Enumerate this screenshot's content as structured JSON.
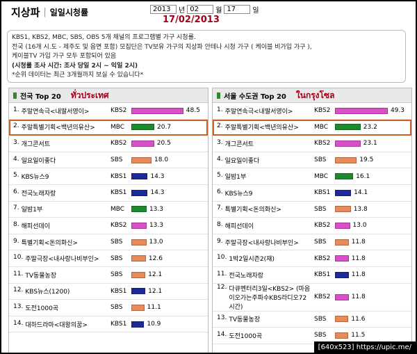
{
  "header": {
    "title": "지상파",
    "subtitle": "일일시청률",
    "selects": [
      {
        "value": "2013",
        "unit": "년"
      },
      {
        "value": "02",
        "unit": "월"
      },
      {
        "value": "17",
        "unit": "일"
      }
    ],
    "overlay_date": "17/02/2013"
  },
  "info": [
    "KBS1, KBS2, MBC, SBS, OBS 5개 채널의 프로그램별 가구 시청률.",
    "전국 (16개 시.도 - 제주도 및 읍면 포함) 모집단은 TV보유 가구의 지상파 안테나 시청 가구 ( 케이블 비가입 가구 ),",
    "케이블TV 가입 가구 모두 포함되어 있음",
    "(시청률 조사 시간: 조사 당일 2시 ~ 익일 2시)",
    "*순위 데이터는 최근 3개월까지 보실 수 있습니다*"
  ],
  "channel_colors": {
    "KBS2": "#d94fc8",
    "MBC": "#1d8a2c",
    "SBS": "#e98a5a",
    "KBS1": "#1c2a98"
  },
  "panels": [
    {
      "title": "전국 Top 20",
      "overlay": "ทั่วประเทศ",
      "rows": [
        {
          "rank": "1.",
          "name": "주말연속극<내딸서영이>",
          "channel": "KBS2",
          "value": 48.5
        },
        {
          "rank": "2.",
          "name": "주말특별기획<백년의유산>",
          "channel": "MBC",
          "value": 20.7
        },
        {
          "rank": "3.",
          "name": "개그콘서트",
          "channel": "KBS2",
          "value": 20.5
        },
        {
          "rank": "4.",
          "name": "일요일이좋다",
          "channel": "SBS",
          "value": 18,
          "value_label": "18.0"
        },
        {
          "rank": "5.",
          "name": "KBS뉴스9",
          "channel": "KBS1",
          "value": 14.3
        },
        {
          "rank": "6.",
          "name": "전국노래자랑",
          "channel": "KBS1",
          "value": 14.3
        },
        {
          "rank": "7.",
          "name": "일밤1부",
          "channel": "MBC",
          "value": 13.3
        },
        {
          "rank": "8.",
          "name": "해피선데이",
          "channel": "KBS2",
          "value": 13.3
        },
        {
          "rank": "9.",
          "name": "특별기획<돈의화신>",
          "channel": "SBS",
          "value": 13,
          "value_label": "13.0"
        },
        {
          "rank": "10.",
          "name": "주말극장<내사랑나비부인>",
          "channel": "SBS",
          "value": 12.6
        },
        {
          "rank": "11.",
          "name": "TV동물농장",
          "channel": "SBS",
          "value": 12.1
        },
        {
          "rank": "12.",
          "name": "KBS뉴스(1200)",
          "channel": "KBS1",
          "value": 12.1
        },
        {
          "rank": "13.",
          "name": "도전1000곡",
          "channel": "SBS",
          "value": 11.1
        },
        {
          "rank": "14.",
          "name": "대하드라마<대왕의꿈>",
          "channel": "KBS1",
          "value": 10.9
        }
      ]
    },
    {
      "title": "서울 수도권 Top 20",
      "overlay": "ในกรุงโซล",
      "rows": [
        {
          "rank": "1.",
          "name": "주말연속극<내딸서영이>",
          "channel": "KBS2",
          "value": 49.3
        },
        {
          "rank": "2.",
          "name": "주말특별기획<백년의유산>",
          "channel": "MBC",
          "value": 23.2
        },
        {
          "rank": "3.",
          "name": "개그콘서트",
          "channel": "KBS2",
          "value": 23.1
        },
        {
          "rank": "4.",
          "name": "일요일이좋다",
          "channel": "SBS",
          "value": 19.5
        },
        {
          "rank": "5.",
          "name": "일밤1부",
          "channel": "MBC",
          "value": 16.1
        },
        {
          "rank": "6.",
          "name": "KBS뉴스9",
          "channel": "KBS1",
          "value": 14.1
        },
        {
          "rank": "7.",
          "name": "특별기획<돈의화신>",
          "channel": "SBS",
          "value": 13.8
        },
        {
          "rank": "8.",
          "name": "해피선데이",
          "channel": "KBS2",
          "value": 13,
          "value_label": "13.0"
        },
        {
          "rank": "9.",
          "name": "주말극장<내사랑나비부인>",
          "channel": "SBS",
          "value": 11.8
        },
        {
          "rank": "10.",
          "name": "1박2일시즌2(재)",
          "channel": "KBS2",
          "value": 11.8
        },
        {
          "rank": "11.",
          "name": "전국노래자랑",
          "channel": "KBS1",
          "value": 11.8
        },
        {
          "rank": "12.",
          "name": "다큐멘터리3일<KBS2> (마음이오가는주파수KBS라디오72시간)",
          "channel": "KBS2",
          "value": 11.8
        },
        {
          "rank": "13.",
          "name": "TV동물농장",
          "channel": "SBS",
          "value": 11.6
        },
        {
          "rank": "14.",
          "name": "도전1000곡",
          "channel": "SBS",
          "value": 11.5
        }
      ]
    }
  ],
  "footer": "[640x523] https://upic.me/"
}
